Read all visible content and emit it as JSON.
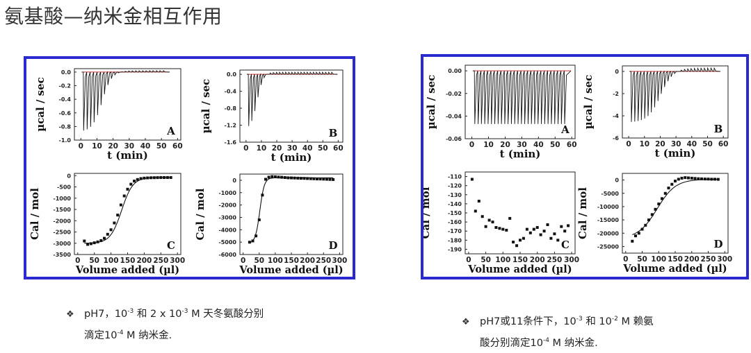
{
  "slide": {
    "title": "氨基酸—纳米金相互作用"
  },
  "captions": {
    "left": {
      "bullet": "❖",
      "l1a": "pH7，10",
      "l1sup1": "-3",
      "l1b": " 和 2 x 10",
      "l1sup2": "-3",
      "l1c": " M 天冬氨酸分别",
      "l2a": "滴定10",
      "l2sup": "-4",
      "l2b": " M 纳米金."
    },
    "right": {
      "bullet": "❖",
      "l1a": "pH7或11条件下，10",
      "l1sup1": "-3",
      "l1b": " 和  10",
      "l1sup2": "-2",
      "l1c": " M 赖氨",
      "l2a": "酸分别滴定10",
      "l2sup": "-4",
      "l2b": " M 纳米金."
    }
  },
  "chart_data": [
    {
      "type": "line",
      "panel": "left",
      "letter": "A",
      "xlabel": "t (min)",
      "ylabel": "µcal / sec",
      "xlim": [
        -4,
        62
      ],
      "ylim": [
        -1.0,
        0.05
      ],
      "xticks": [
        0,
        10,
        20,
        30,
        40,
        50,
        60
      ],
      "xtick_labels": [
        "0",
        "10",
        "20",
        "30",
        "40",
        "50",
        "60"
      ],
      "yticks": [
        0,
        -0.2,
        -0.4,
        -0.6,
        -0.8,
        -1.0
      ],
      "ytick_labels": [
        "0.0",
        "-0.2",
        "-0.4",
        "-0.6",
        "-0.8",
        "-1.0"
      ],
      "itc": {
        "n": 24,
        "t0": 1.5,
        "dt": 2.15,
        "base": 0,
        "peak": -0.88,
        "sat": 0.02,
        "mid": 13,
        "w": 3
      }
    },
    {
      "type": "line",
      "panel": "left",
      "letter": "B",
      "xlabel": "t (min)",
      "ylabel": "µcal / sec",
      "xlim": [
        -4,
        63
      ],
      "ylim": [
        -1.6,
        0.1
      ],
      "xticks": [
        0,
        10,
        20,
        30,
        40,
        50,
        60
      ],
      "xtick_labels": [
        "0",
        "10",
        "20",
        "30",
        "40",
        "50",
        "60"
      ],
      "yticks": [
        0,
        -0.4,
        -0.8,
        -1.2,
        -1.6
      ],
      "ytick_labels": [
        "0.0",
        "-0.4",
        "-0.8",
        "-1.2",
        "-1.6"
      ],
      "itc": {
        "n": 28,
        "t0": 1.5,
        "dt": 2.0,
        "base": 0,
        "peak": -1.3,
        "sat": 0.05,
        "mid": 7,
        "w": 2
      }
    },
    {
      "type": "scatter",
      "panel": "left",
      "letter": "C",
      "xlabel": "Volume added (µl)",
      "ylabel": "Cal / mol",
      "xlim": [
        -10,
        310
      ],
      "ylim": [
        -3500,
        100
      ],
      "xticks": [
        0,
        50,
        100,
        150,
        200,
        250,
        300
      ],
      "xtick_labels": [
        "0",
        "50",
        "100",
        "150",
        "200",
        "250",
        "300"
      ],
      "yticks": [
        0,
        -500,
        -1000,
        -1500,
        -2000,
        -2500,
        -3000,
        -3500
      ],
      "ytick_labels": [
        "0",
        "-500",
        "-1000",
        "-1500",
        "-2000",
        "-2500",
        "-3000",
        "-3500"
      ],
      "fit": {
        "a": -3000,
        "b": -80,
        "mid": 132,
        "w": 17
      },
      "points_x": [
        20,
        30,
        40,
        50,
        60,
        70,
        80,
        90,
        100,
        110,
        120,
        130,
        140,
        150,
        160,
        170,
        180,
        190,
        200,
        210,
        220,
        230,
        240,
        250,
        260,
        270,
        280
      ],
      "points_y": [
        -2900,
        -3050,
        -3020,
        -2980,
        -2940,
        -2880,
        -2780,
        -2600,
        -2400,
        -2100,
        -1750,
        -1300,
        -900,
        -600,
        -380,
        -240,
        -170,
        -130,
        -110,
        -100,
        -95,
        -90,
        -88,
        -85,
        -85,
        -85,
        -85
      ]
    },
    {
      "type": "scatter",
      "panel": "left",
      "letter": "D",
      "xlabel": "Volume added (µl)",
      "ylabel": "Cal / mol",
      "xlim": [
        -10,
        310
      ],
      "ylim": [
        -6000,
        500
      ],
      "xticks": [
        0,
        50,
        100,
        150,
        200,
        250,
        300
      ],
      "xtick_labels": [
        "0",
        "50",
        "100",
        "150",
        "200",
        "250",
        "300"
      ],
      "yticks": [
        0,
        -1000,
        -2000,
        -3000,
        -4000,
        -5000,
        -6000
      ],
      "ytick_labels": [
        "0",
        "-1000",
        "-2000",
        "-3000",
        "-4000",
        "-5000",
        "-6000"
      ],
      "fit": {
        "a": -5100,
        "b": 200,
        "mid": 52,
        "w": 7
      },
      "points_x": [
        20,
        30,
        40,
        50,
        60,
        70,
        80,
        90,
        100,
        110,
        120,
        130,
        140,
        150,
        160,
        170,
        180,
        190,
        200,
        210,
        220,
        230,
        240,
        250,
        260,
        270,
        280
      ],
      "points_y": [
        -5000,
        -4900,
        -4500,
        -3200,
        -1200,
        80,
        250,
        300,
        280,
        260,
        240,
        220,
        200,
        190,
        180,
        170,
        160,
        150,
        140,
        130,
        120,
        110,
        100,
        90,
        80,
        70,
        60
      ]
    },
    {
      "type": "line",
      "panel": "right",
      "letter": "A",
      "xlabel": "t (min)",
      "ylabel": "µcal / sec",
      "xlim": [
        -4,
        62
      ],
      "ylim": [
        -0.06,
        0.005
      ],
      "xticks": [
        0,
        10,
        20,
        30,
        40,
        50,
        60
      ],
      "xtick_labels": [
        "0",
        "10",
        "20",
        "30",
        "40",
        "50",
        "60"
      ],
      "yticks": [
        0,
        -0.02,
        -0.04,
        -0.06
      ],
      "ytick_labels": [
        "0.00",
        "-0.02",
        "-0.04",
        "-0.06"
      ],
      "itc": {
        "n": 28,
        "t0": 1.5,
        "dt": 2.0,
        "base": 0,
        "peak": -0.047,
        "sat": -0.044,
        "mid": 100,
        "w": 5
      }
    },
    {
      "type": "line",
      "panel": "right",
      "letter": "B",
      "xlabel": "t (min)",
      "ylabel": "µcal / sec",
      "xlim": [
        -4,
        63
      ],
      "ylim": [
        -6,
        0.5
      ],
      "xticks": [
        0,
        10,
        20,
        30,
        40,
        50,
        60
      ],
      "xtick_labels": [
        "0",
        "10",
        "20",
        "30",
        "40",
        "50",
        "60"
      ],
      "yticks": [
        0,
        -2,
        -4,
        -6
      ],
      "ytick_labels": [
        "0",
        "-2",
        "-4",
        "-6"
      ],
      "itc": {
        "n": 26,
        "t0": 1.5,
        "dt": 2.1,
        "base": 0,
        "peak": -4.6,
        "sat": 0.3,
        "mid": 20,
        "w": 4
      }
    },
    {
      "type": "scatter",
      "panel": "right",
      "letter": "C",
      "xlabel": "Volume added (µl)",
      "ylabel": "Cal / mol",
      "xlim": [
        -10,
        310
      ],
      "ylim": [
        -195,
        -105
      ],
      "xticks": [
        0,
        50,
        100,
        150,
        200,
        250,
        300
      ],
      "xtick_labels": [
        "0",
        "50",
        "100",
        "150",
        "200",
        "250",
        "300"
      ],
      "yticks": [
        -110,
        -120,
        -130,
        -140,
        -150,
        -160,
        -170,
        -180,
        -190
      ],
      "ytick_labels": [
        "-110",
        "-120",
        "-130",
        "-140",
        "-150",
        "-160",
        "-170",
        "-180",
        "-190"
      ],
      "points_x": [
        10,
        20,
        30,
        40,
        50,
        60,
        70,
        80,
        90,
        100,
        110,
        120,
        130,
        140,
        150,
        160,
        170,
        180,
        190,
        200,
        210,
        220,
        230,
        240,
        250,
        260,
        270,
        280,
        290
      ],
      "points_y": [
        -113,
        -148,
        -137,
        -154,
        -165,
        -158,
        -160,
        -166,
        -167,
        -168,
        -169,
        -156,
        -182,
        -186,
        -180,
        -178,
        -168,
        -172,
        -168,
        -166,
        -174,
        -170,
        -163,
        -178,
        -173,
        -180,
        -165,
        -170,
        -164
      ]
    },
    {
      "type": "scatter",
      "panel": "right",
      "letter": "D",
      "xlabel": "Volume added (µl)",
      "ylabel": "Cal / mol",
      "xlim": [
        -10,
        310
      ],
      "ylim": [
        -27500,
        2500
      ],
      "xticks": [
        0,
        50,
        100,
        150,
        200,
        250,
        300
      ],
      "xtick_labels": [
        "0",
        "50",
        "100",
        "150",
        "200",
        "250",
        "300"
      ],
      "yticks": [
        0,
        -5000,
        -10000,
        -15000,
        -20000,
        -25000
      ],
      "ytick_labels": [
        "0",
        "-5000",
        "-10000",
        "-15000",
        "-20000",
        "-25000"
      ],
      "fit": {
        "a": -22000,
        "b": 300,
        "mid": 95,
        "w": 28
      },
      "points_x": [
        20,
        30,
        40,
        50,
        60,
        70,
        80,
        90,
        100,
        110,
        120,
        130,
        140,
        150,
        160,
        170,
        180,
        190,
        200,
        210,
        220,
        230,
        240,
        250,
        260,
        270,
        280
      ],
      "points_y": [
        -23000,
        -21000,
        -20000,
        -18500,
        -17000,
        -15000,
        -13000,
        -11000,
        -9000,
        -7000,
        -5000,
        -3000,
        -1600,
        -400,
        300,
        700,
        900,
        800,
        700,
        600,
        500,
        450,
        400,
        350,
        300,
        300,
        250
      ]
    }
  ]
}
